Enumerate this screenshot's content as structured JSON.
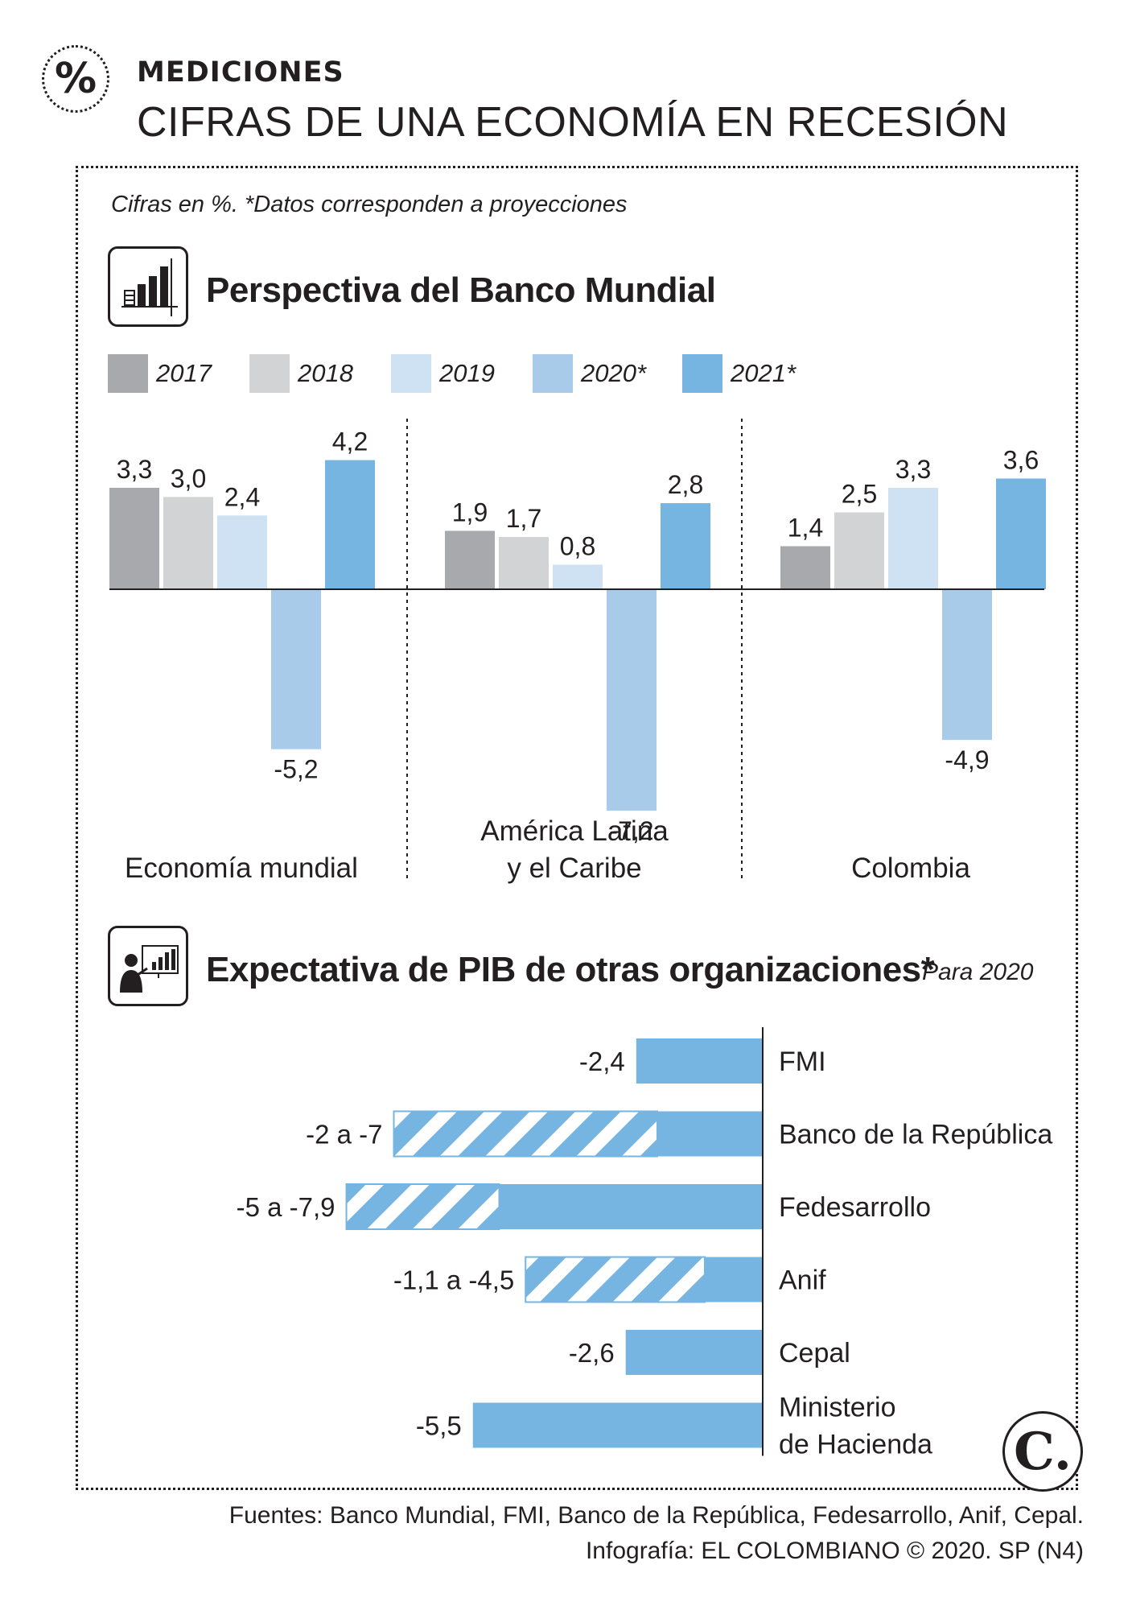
{
  "header": {
    "badge": "%",
    "kicker": "MEDICIONES",
    "headline": "CIFRAS DE UNA ECONOMÍA EN RECESIÓN"
  },
  "note": "Cifras en %. *Datos corresponden a proyecciones",
  "section1": {
    "title": "Perspectiva del Banco Mundial",
    "icon": "bar-chart-icon"
  },
  "section2": {
    "title": "Expectativa de PIB de otras organizaciones*",
    "subtitle": "Para 2020",
    "icon": "presenter-chart-icon"
  },
  "colors": {
    "y2017": "#a7a9ac",
    "y2018": "#d1d3d4",
    "y2019": "#cfe2f3",
    "y2020": "#a9cbea",
    "y2021": "#76b5e2",
    "hbar": "#76b5e2"
  },
  "chart_data": [
    {
      "type": "bar",
      "title": "Perspectiva del Banco Mundial",
      "unit": "%",
      "categories": [
        "Economía mundial",
        "América Latina y el Caribe",
        "Colombia"
      ],
      "category_lines": [
        [
          "Economía mundial"
        ],
        [
          "América Latina",
          "y el Caribe"
        ],
        [
          "Colombia"
        ]
      ],
      "series": [
        {
          "name": "2017",
          "color_key": "y2017",
          "values": [
            3.3,
            1.9,
            1.4
          ],
          "labels": [
            "3,3",
            "1,9",
            "1,4"
          ]
        },
        {
          "name": "2018",
          "color_key": "y2018",
          "values": [
            3.0,
            1.7,
            2.5
          ],
          "labels": [
            "3,0",
            "1,7",
            "2,5"
          ]
        },
        {
          "name": "2019",
          "color_key": "y2019",
          "values": [
            2.4,
            0.8,
            3.3
          ],
          "labels": [
            "2,4",
            "0,8",
            "3,3"
          ]
        },
        {
          "name": "2020*",
          "color_key": "y2020",
          "values": [
            -5.2,
            -7.2,
            -4.9
          ],
          "labels": [
            "-5,2",
            "-7,2",
            "-4,9"
          ]
        },
        {
          "name": "2021*",
          "color_key": "y2021",
          "values": [
            4.2,
            2.8,
            3.6
          ],
          "labels": [
            "4,2",
            "2,8",
            "3,6"
          ]
        }
      ],
      "ylim": [
        -7.2,
        4.2
      ]
    },
    {
      "type": "bar",
      "orientation": "horizontal",
      "title": "Expectativa de PIB de otras organizaciones*",
      "subtitle": "Para 2020",
      "unit": "%",
      "xlim": [
        -7.9,
        0
      ],
      "items": [
        {
          "name": [
            "FMI"
          ],
          "label": "-2,4",
          "value": -2.4
        },
        {
          "name": [
            "Banco de la República"
          ],
          "label": "-2 a -7",
          "range": [
            -2,
            -7
          ]
        },
        {
          "name": [
            "Fedesarrollo"
          ],
          "label": "-5 a -7,9",
          "range": [
            -5,
            -7.9
          ]
        },
        {
          "name": [
            "Anif"
          ],
          "label": "-1,1 a -4,5",
          "range": [
            -1.1,
            -4.5
          ]
        },
        {
          "name": [
            "Cepal"
          ],
          "label": "-2,6",
          "value": -2.6
        },
        {
          "name": [
            "Ministerio",
            "de Hacienda"
          ],
          "label": "-5,5",
          "value": -5.5
        }
      ]
    }
  ],
  "logo": "C.",
  "footer": {
    "sources": "Fuentes: Banco Mundial, FMI, Banco de la República, Fedesarrollo, Anif, Cepal.",
    "credit": "Infografía: EL COLOMBIANO © 2020. SP (N4)"
  }
}
